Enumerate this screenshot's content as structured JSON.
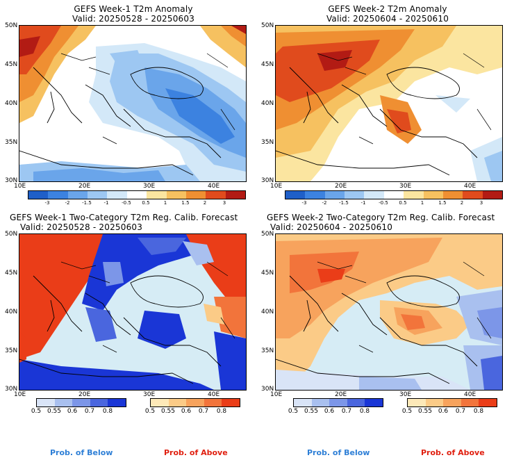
{
  "panels": [
    {
      "title1": "GEFS Week-1 T2m Anomaly",
      "title2": "Valid: 20250528 - 20250603"
    },
    {
      "title1": "GEFS Week-2 T2m Anomaly",
      "title2": "Valid: 20250604 - 20250610"
    },
    {
      "title1": "GEFS Week-1 Two-Category T2m Reg. Calib. Forecast",
      "title2": "Valid: 20250528 - 20250603"
    },
    {
      "title1": "GEFS Week-2 Two-Category T2m Reg. Calib. Forecast",
      "title2": "Valid: 20250604 - 20250610"
    }
  ],
  "lat_labels": [
    "50N",
    "45N",
    "40N",
    "35N",
    "30N"
  ],
  "lon_labels": [
    "10E",
    "20E",
    "30E",
    "40E"
  ],
  "anomaly_colorbar": {
    "ticks": [
      "-3",
      "-2",
      "-1.5",
      "-1",
      "-0.5",
      "0.5",
      "1",
      "1.5",
      "2",
      "3"
    ],
    "colors": [
      "#1f5fc8",
      "#3c82e0",
      "#6aa5ea",
      "#9dc7f2",
      "#d3e8f8",
      "#ffffff",
      "#fbe5a0",
      "#f6c160",
      "#ef8f32",
      "#e04b1d",
      "#b21b14"
    ]
  },
  "prob_colorbars": {
    "below": {
      "ticks": [
        "0.5",
        "0.55",
        "0.6",
        "0.7",
        "0.8"
      ],
      "colors": [
        "#d9e4f7",
        "#a9c0ef",
        "#7c96e8",
        "#4a66de",
        "#1a36d6"
      ],
      "label": "Prob. of Below",
      "label_color": "#2e7fd6"
    },
    "above": {
      "ticks": [
        "0.5",
        "0.55",
        "0.6",
        "0.7",
        "0.8"
      ],
      "colors": [
        "#fde9b8",
        "#fbcb87",
        "#f7a35d",
        "#f2743b",
        "#ea3d18"
      ],
      "label": "Prob. of Above",
      "label_color": "#e02010"
    }
  }
}
